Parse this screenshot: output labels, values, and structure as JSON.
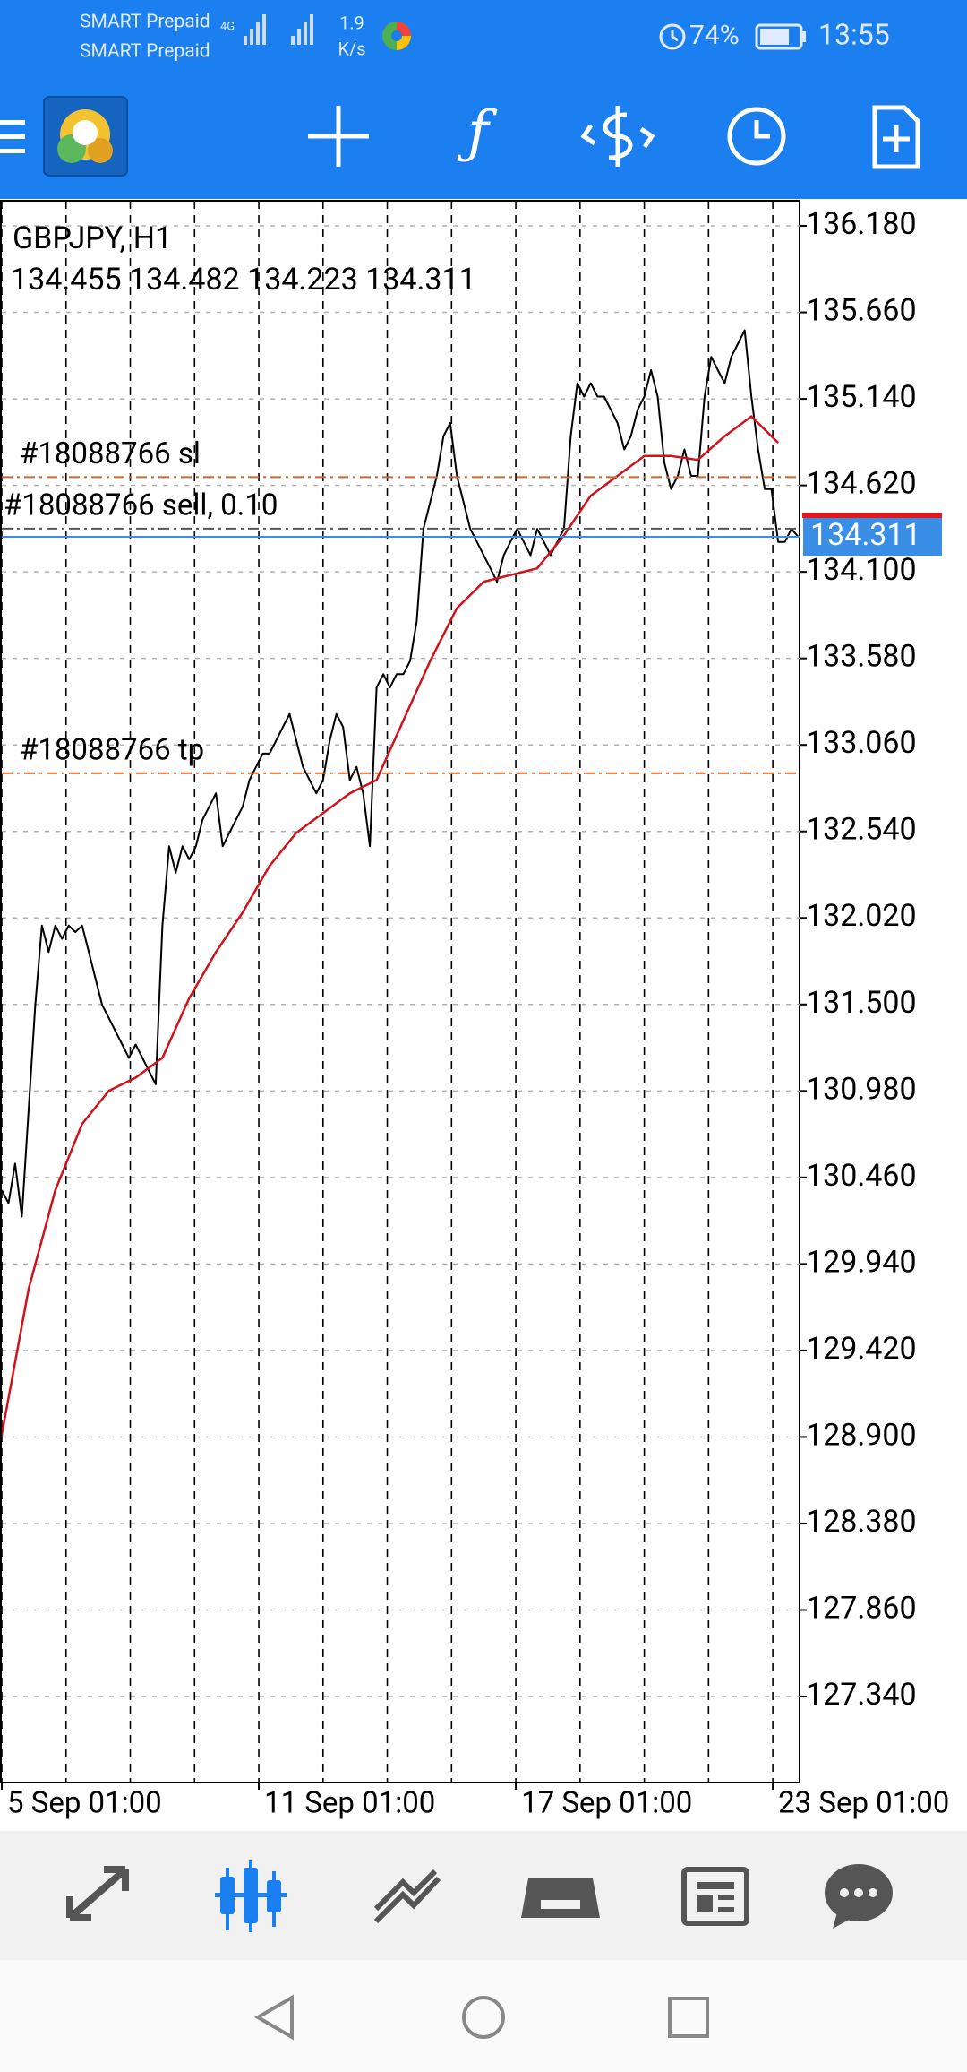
{
  "status_bar": {
    "carrier_1": "SMART Prepaid",
    "carrier_2": "SMART Prepaid",
    "network": "4G",
    "speed": "1.9",
    "speed_unit": "K/s",
    "battery": "74%",
    "time": "13:55"
  },
  "chart_data": {
    "type": "line",
    "title": "GBPJPY, H1",
    "subtitle": "134.455 134.482 134.223 134.311",
    "series": [
      {
        "color": "#000000",
        "x": [
          0,
          2.5,
          5,
          7.5,
          10,
          12.5,
          15,
          17.5,
          20,
          22.5,
          25,
          27.5,
          30,
          32.5,
          35,
          37.5,
          40,
          42.5,
          45,
          47.5,
          50,
          52.5,
          55,
          57.5,
          60,
          62.5,
          65,
          67.5,
          70,
          72.5,
          75,
          77.5,
          80,
          82.5,
          85,
          87.5,
          90,
          92.5,
          95,
          97.5,
          100,
          102.5,
          105,
          107.5,
          110,
          112.5,
          115,
          117.5,
          120,
          122.5,
          125,
          127.5,
          130,
          132.5,
          135,
          137.5,
          140,
          142.5,
          145,
          147.5,
          150,
          152.5,
          155,
          157.5,
          160,
          162.5,
          165,
          167.5,
          170,
          172.5,
          175,
          177.5,
          180,
          182.5,
          185,
          187.5,
          190,
          192.5,
          195,
          197.5,
          200,
          202.5,
          205,
          207.5,
          210,
          212.5,
          215,
          217.5,
          220,
          222.5,
          225,
          227.5,
          230,
          232.5,
          235,
          237.5,
          240,
          242.5,
          245,
          247.5,
          250,
          252.5,
          255,
          257.5,
          260,
          262.5,
          265,
          267.5,
          270,
          272.5,
          275,
          277.5,
          280,
          282.5,
          285,
          287.5,
          290,
          292.5,
          295,
          297.5
        ],
        "values": [
          130.384,
          130.305,
          130.543,
          130.225,
          130.861,
          131.497,
          131.974,
          131.815,
          131.974,
          131.895,
          131.974,
          131.935,
          131.974,
          131.815,
          131.656,
          131.497,
          131.418,
          131.338,
          131.259,
          131.179,
          131.259,
          131.179,
          131.1,
          131.02,
          131.974,
          132.451,
          132.292,
          132.451,
          132.372,
          132.451,
          132.61,
          132.69,
          132.769,
          132.451,
          132.531,
          132.61,
          132.69,
          132.849,
          132.928,
          133.008,
          133.008,
          133.087,
          133.167,
          133.246,
          133.087,
          132.928,
          132.849,
          132.769,
          132.849,
          133.087,
          133.246,
          133.167,
          132.849,
          132.928,
          132.769,
          132.451,
          133.405,
          133.485,
          133.405,
          133.485,
          133.485,
          133.564,
          133.803,
          134.359,
          134.518,
          134.677,
          134.916,
          134.995,
          134.677,
          134.518,
          134.359,
          134.28,
          134.2,
          134.121,
          134.041,
          134.2,
          134.28,
          134.359,
          134.28,
          134.2,
          134.359,
          134.28,
          134.2,
          134.28,
          134.359,
          134.916,
          135.234,
          135.154,
          135.234,
          135.154,
          135.154,
          135.075,
          134.995,
          134.836,
          134.916,
          135.075,
          135.154,
          135.313,
          135.154,
          134.757,
          134.598,
          134.677,
          134.836,
          134.677,
          134.677,
          135.154,
          135.393,
          135.313,
          135.234,
          135.393,
          135.472,
          135.552,
          135.154,
          134.836,
          134.598,
          134.598,
          134.28,
          134.28,
          134.359,
          134.311
        ]
      },
      {
        "color": "#d0121b",
        "x": [
          0,
          10,
          20,
          30,
          40,
          50,
          60,
          70,
          80,
          90,
          100,
          110,
          120,
          130,
          140,
          150,
          160,
          170,
          180,
          190,
          200,
          210,
          220,
          230,
          240,
          250,
          260,
          270,
          280,
          290
        ],
        "values": [
          128.914,
          129.788,
          130.384,
          130.782,
          130.981,
          131.06,
          131.179,
          131.537,
          131.815,
          132.054,
          132.332,
          132.531,
          132.65,
          132.769,
          132.849,
          133.207,
          133.564,
          133.882,
          134.041,
          134.081,
          134.121,
          134.32,
          134.558,
          134.677,
          134.797,
          134.797,
          134.773,
          134.916,
          135.035,
          134.876
        ]
      }
    ],
    "xlim": [
      0,
      298
    ],
    "xticks": [
      {
        "value": 0,
        "label": "5 Sep 01:00"
      },
      {
        "value": 96,
        "label": "11 Sep 01:00"
      },
      {
        "value": 192,
        "label": "17 Sep 01:00"
      },
      {
        "value": 288,
        "label": "23 Sep 01:00"
      }
    ],
    "xgrid": [
      0,
      24,
      48,
      72,
      96,
      120,
      144,
      168,
      192,
      216,
      240,
      264,
      288
    ],
    "ylim": [
      126.823,
      136.331
    ],
    "yticks": [
      {
        "value": 136.18,
        "label": "136.180"
      },
      {
        "value": 135.66,
        "label": "135.660"
      },
      {
        "value": 135.14,
        "label": "135.140"
      },
      {
        "value": 134.62,
        "label": "134.620"
      },
      {
        "value": 134.1,
        "label": "134.100"
      },
      {
        "value": 133.58,
        "label": "133.580"
      },
      {
        "value": 133.06,
        "label": "133.060"
      },
      {
        "value": 132.54,
        "label": "132.540"
      },
      {
        "value": 132.02,
        "label": "132.020"
      },
      {
        "value": 131.5,
        "label": "131.500"
      },
      {
        "value": 130.98,
        "label": "130.980"
      },
      {
        "value": 130.46,
        "label": "130.460"
      },
      {
        "value": 129.94,
        "label": "129.940"
      },
      {
        "value": 129.42,
        "label": "129.420"
      },
      {
        "value": 128.9,
        "label": "128.900"
      },
      {
        "value": 128.38,
        "label": "128.380"
      },
      {
        "value": 127.86,
        "label": "127.860"
      },
      {
        "value": 127.34,
        "label": "127.340"
      }
    ],
    "grid": true,
    "orders": [
      {
        "label": "#18088766 sl",
        "value": 134.67,
        "color": "#d9622b"
      },
      {
        "label": "#18088766 sell, 0.10",
        "value": 134.36,
        "color": "#555555"
      },
      {
        "label": "#18088766 tp",
        "value": 132.89,
        "color": "#d9622b"
      }
    ],
    "bid": 134.311,
    "bid_color": "#3a8ee6",
    "ask": 134.44,
    "ask_color": "#e0191f"
  }
}
